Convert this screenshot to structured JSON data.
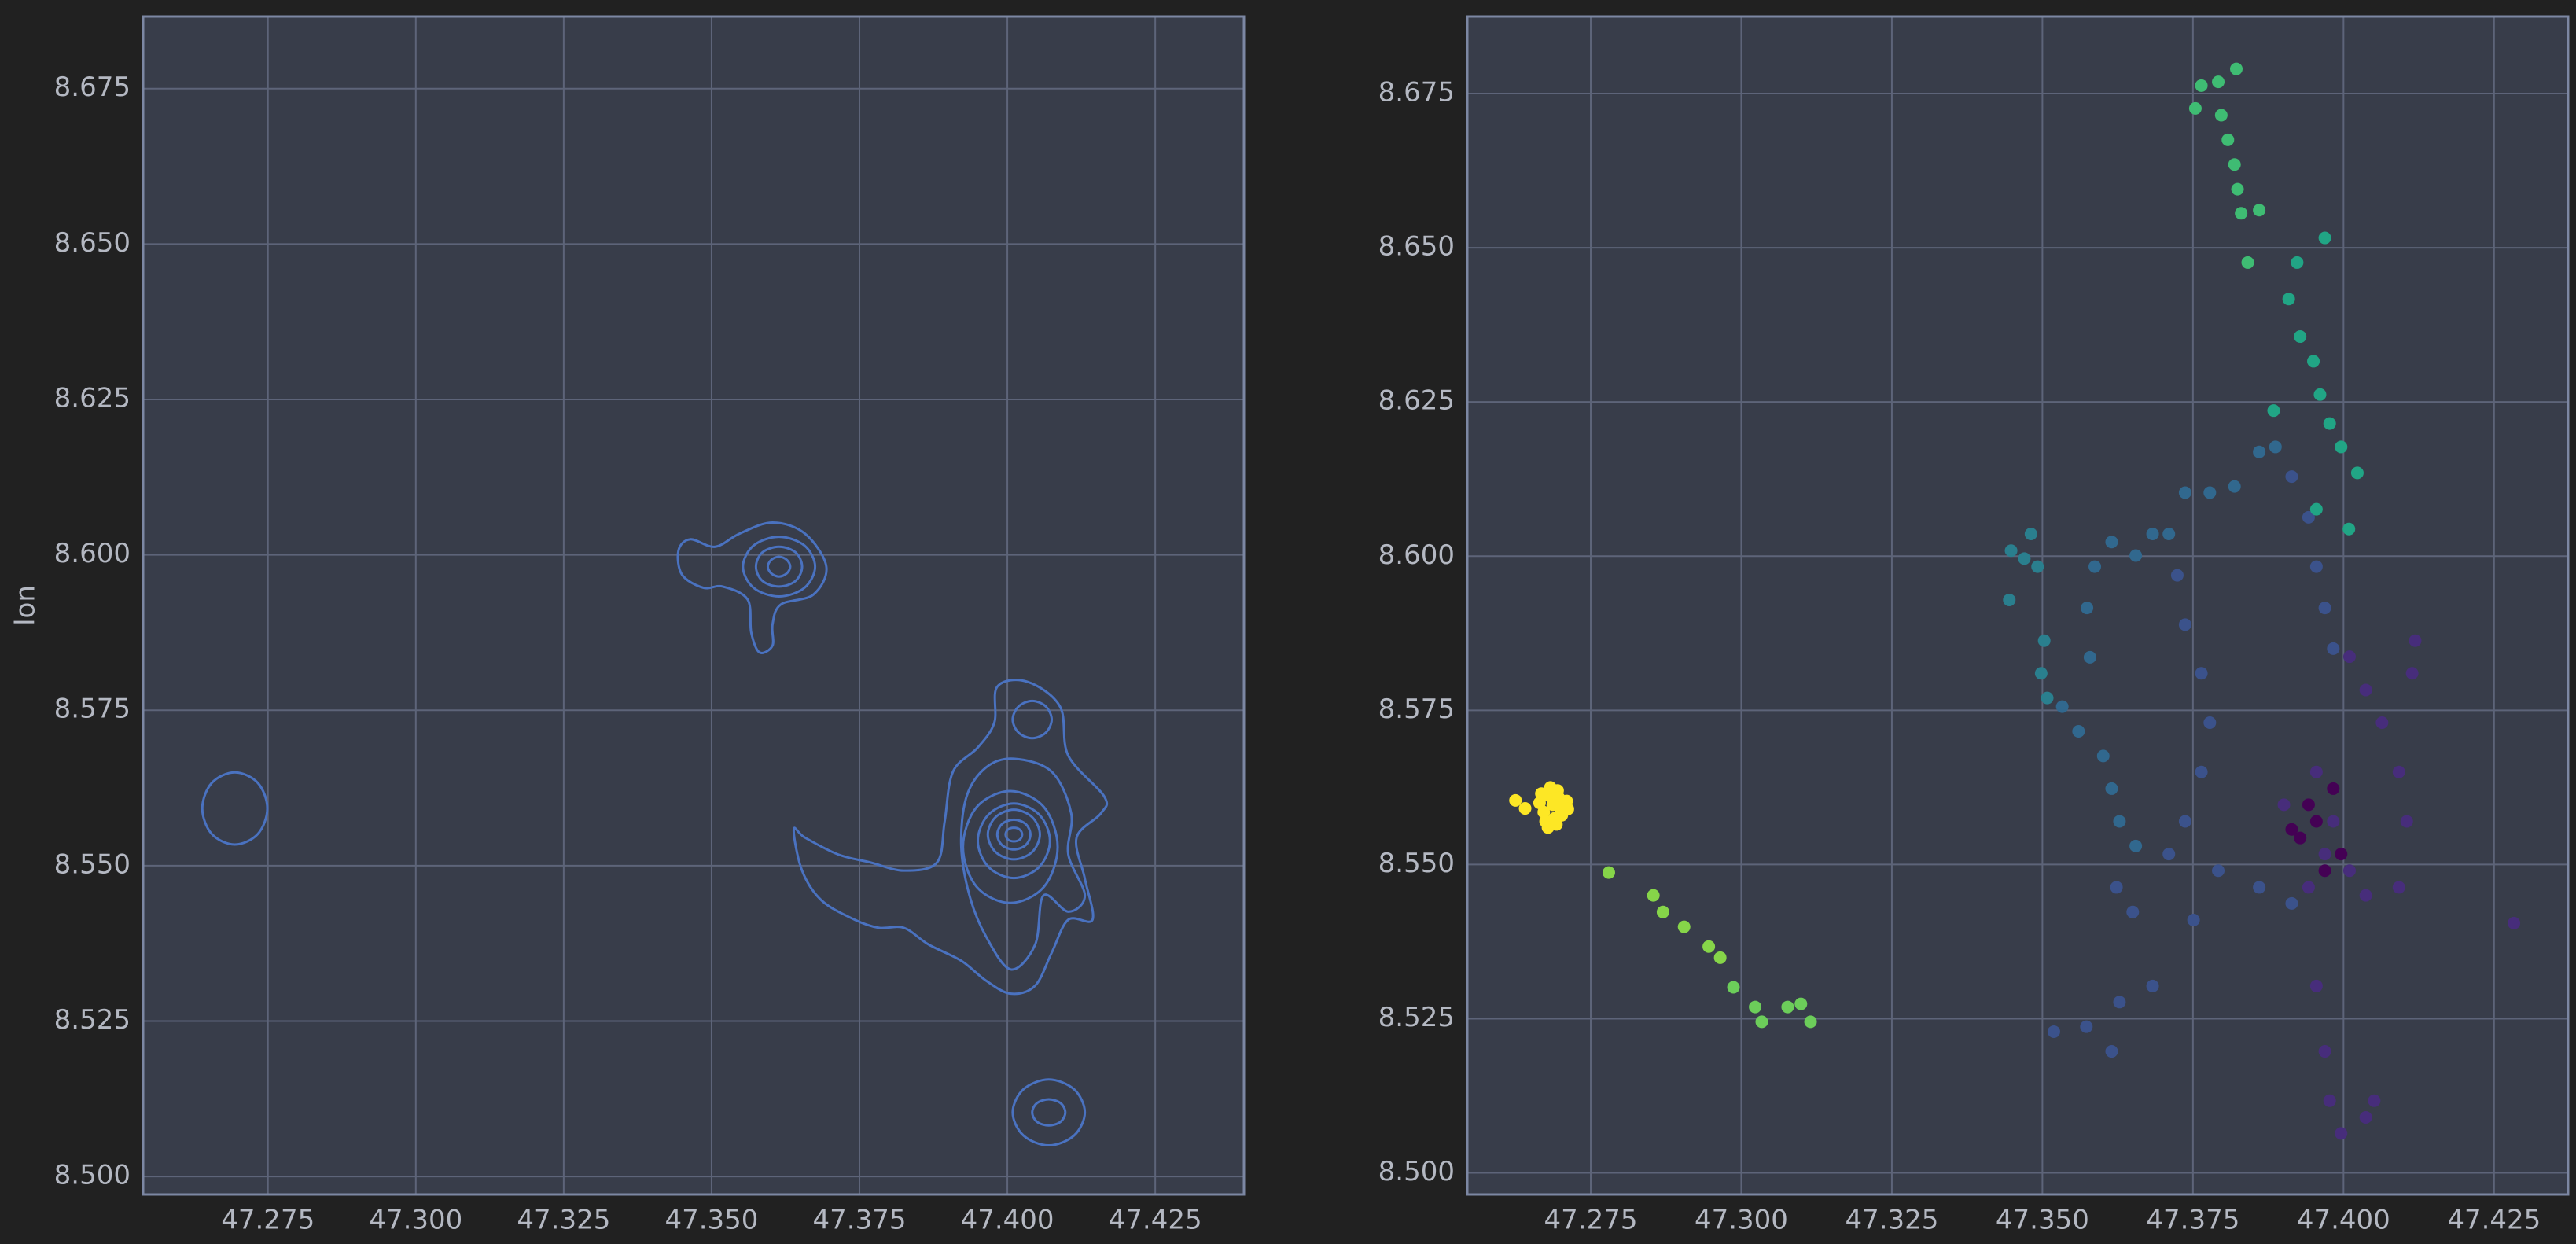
{
  "chart_data": [
    {
      "type": "contour",
      "ylabel": "lon",
      "color": "#4a72c0",
      "grid": true,
      "xlim": [
        47.2539,
        47.44
      ],
      "ylim": [
        8.4971,
        8.6866
      ],
      "xticks": [
        47.275,
        {
          "value": 47.3,
          "label": "47.300"
        },
        47.325,
        {
          "value": 47.35,
          "label": "47.350"
        },
        47.375,
        {
          "value": 47.4,
          "label": "47.400"
        },
        47.425
      ],
      "yticks": [
        {
          "value": 8.5,
          "label": "8.500"
        },
        8.525,
        {
          "value": 8.55,
          "label": "8.550"
        },
        8.575,
        {
          "value": 8.6,
          "label": "8.600"
        },
        8.625,
        {
          "value": 8.65,
          "label": "8.650"
        },
        8.675
      ],
      "contours": [
        {
          "x": [
            47.2749,
            47.2733,
            47.2694,
            47.2655,
            47.2639,
            47.2655,
            47.2694,
            47.2733
          ],
          "y": [
            8.5592,
            8.5633,
            8.565,
            8.5633,
            8.5592,
            8.5551,
            8.5534,
            8.5551
          ]
        },
        {
          "x": [
            47.3444,
            47.3464,
            47.3506,
            47.3547,
            47.3603,
            47.3658,
            47.3694,
            47.3672,
            47.3617,
            47.3603,
            47.3603,
            47.3581,
            47.3567,
            47.3561,
            47.3519,
            47.3486,
            47.345
          ],
          "y": [
            8.6007,
            8.6025,
            8.6013,
            8.6034,
            8.6052,
            8.6034,
            8.5981,
            8.5936,
            8.592,
            8.5888,
            8.5854,
            8.5843,
            8.5875,
            8.5928,
            8.5949,
            8.5947,
            8.5968
          ]
        },
        {
          "x": [
            47.3675,
            47.3657,
            47.3614,
            47.3571,
            47.3553,
            47.3571,
            47.3614,
            47.3657
          ],
          "y": [
            8.5981,
            8.6015,
            8.6029,
            8.6015,
            8.5981,
            8.5947,
            8.5933,
            8.5947
          ]
        },
        {
          "x": [
            47.3653,
            47.3642,
            47.3614,
            47.3586,
            47.3575,
            47.3586,
            47.3614,
            47.3642
          ],
          "y": [
            8.5981,
            8.6004,
            8.6013,
            8.6004,
            8.5981,
            8.5958,
            8.5949,
            8.5958
          ]
        },
        {
          "x": [
            47.3633,
            47.3627,
            47.3614,
            47.3601,
            47.3595,
            47.3601,
            47.3614,
            47.3627
          ],
          "y": [
            8.5981,
            8.5992,
            8.5997,
            8.5992,
            8.5981,
            8.597,
            8.5965,
            8.597
          ]
        },
        {
          "x": [
            47.4025,
            47.4021,
            47.4011,
            47.4001,
            47.3997,
            47.4001,
            47.4011,
            47.4021
          ],
          "y": [
            8.555,
            8.5558,
            8.5561,
            8.5558,
            8.555,
            8.5542,
            8.5539,
            8.5542
          ]
        },
        {
          "x": [
            47.4039,
            47.4031,
            47.4011,
            47.3991,
            47.3983,
            47.3991,
            47.4011,
            47.4031
          ],
          "y": [
            8.555,
            8.5567,
            8.5574,
            8.5567,
            8.555,
            8.5533,
            8.5526,
            8.5533
          ]
        },
        {
          "x": [
            47.4055,
            47.4042,
            47.4011,
            47.398,
            47.3967,
            47.398,
            47.4011,
            47.4042
          ],
          "y": [
            8.555,
            8.5578,
            8.559,
            8.5578,
            8.555,
            8.5522,
            8.551,
            8.5522
          ]
        },
        {
          "x": [
            47.4072,
            47.4054,
            47.4011,
            47.3968,
            47.395,
            47.3968,
            47.4011,
            47.4054
          ],
          "y": [
            8.554,
            8.5582,
            8.56,
            8.5582,
            8.554,
            8.5498,
            8.548,
            8.5498
          ]
        },
        {
          "x": [
            47.4085,
            47.4062,
            47.4005,
            47.3948,
            47.3925,
            47.3948,
            47.4005,
            47.4062
          ],
          "y": [
            8.553,
            8.5594,
            8.562,
            8.5594,
            8.553,
            8.5466,
            8.544,
            8.5466
          ]
        },
        {
          "x": [
            47.4011,
            47.4075,
            47.4108,
            47.4103,
            47.4131,
            47.4103,
            47.4061,
            47.4047,
            47.4006,
            47.3964,
            47.3936,
            47.3922,
            47.3931,
            47.3964
          ],
          "y": [
            8.5672,
            8.5651,
            8.5584,
            8.5518,
            8.5452,
            8.5426,
            8.5452,
            8.5373,
            8.5333,
            8.5386,
            8.5452,
            8.5532,
            8.5611,
            8.5658
          ]
        },
        {
          "x": [
            47.3983,
            47.4033,
            47.4089,
            47.4103,
            47.4164,
            47.4158,
            47.4117,
            47.4131,
            47.4144,
            47.4103,
            47.4075,
            47.4047,
            47.4006,
            47.3964,
            47.3922,
            47.3867,
            47.3825,
            47.3783,
            47.3742,
            47.3686,
            47.3653,
            47.3639,
            47.3658,
            47.3714,
            47.3769,
            47.3825,
            47.3881,
            47.3894,
            47.3908,
            47.395,
            47.3978
          ],
          "y": [
            8.5788,
            8.5796,
            8.5756,
            8.5677,
            8.5611,
            8.5584,
            8.5545,
            8.5479,
            8.5413,
            8.5413,
            8.536,
            8.5307,
            8.5294,
            8.5315,
            8.5347,
            8.5373,
            8.54,
            8.54,
            8.5413,
            8.5444,
            8.5492,
            8.5558,
            8.5545,
            8.5518,
            8.5505,
            8.5492,
            8.5505,
            8.5571,
            8.5651,
            8.569,
            8.573
          ]
        },
        {
          "x": [
            47.4075,
            47.4065,
            47.4042,
            47.4019,
            47.4009,
            47.4019,
            47.4042,
            47.4065
          ],
          "y": [
            8.5735,
            8.5756,
            8.5765,
            8.5756,
            8.5735,
            8.5714,
            8.5705,
            8.5714
          ]
        },
        {
          "x": [
            47.4131,
            47.4113,
            47.407,
            47.4027,
            47.4009,
            47.4027,
            47.407,
            47.4113
          ],
          "y": [
            8.5103,
            8.514,
            8.5156,
            8.514,
            8.5103,
            8.5066,
            8.505,
            8.5066
          ]
        },
        {
          "x": [
            47.4098,
            47.409,
            47.407,
            47.405,
            47.4042,
            47.405,
            47.407,
            47.409
          ],
          "y": [
            8.5103,
            8.5118,
            8.5124,
            8.5118,
            8.5103,
            8.5088,
            8.5082,
            8.5088
          ]
        }
      ]
    },
    {
      "type": "scatter",
      "grid": true,
      "xlim": [
        47.2545,
        47.4373
      ],
      "ylim": [
        8.4965,
        8.6875
      ],
      "xticks": [
        47.275,
        {
          "value": 47.3,
          "label": "47.300"
        },
        47.325,
        {
          "value": 47.35,
          "label": "47.350"
        },
        47.375,
        {
          "value": 47.4,
          "label": "47.400"
        },
        47.425
      ],
      "yticks": [
        {
          "value": 8.5,
          "label": "8.500"
        },
        8.525,
        {
          "value": 8.55,
          "label": "8.550"
        },
        8.575,
        {
          "value": 8.6,
          "label": "8.600"
        },
        8.625,
        {
          "value": 8.65,
          "label": "8.650"
        },
        8.675
      ],
      "series": [
        {
          "color": "#440154",
          "x": [
            47.3928,
            47.3955,
            47.3983,
            47.3996,
            47.3942,
            47.3969,
            47.3914
          ],
          "y": [
            8.5543,
            8.557,
            8.5623,
            8.5517,
            8.5597,
            8.549,
            8.5557
          ]
        },
        {
          "color": "#472d7b",
          "x": [
            47.3901,
            47.3955,
            47.3983,
            47.401,
            47.4037,
            47.4092,
            47.4105,
            47.4092,
            47.4064,
            47.4037,
            47.401,
            47.3969,
            47.3942,
            47.3955,
            47.3969,
            47.3977,
            47.3996,
            47.4037,
            47.4051,
            47.4119,
            47.4114,
            47.4283
          ],
          "y": [
            8.5597,
            8.565,
            8.557,
            8.549,
            8.545,
            8.5463,
            8.557,
            8.565,
            8.573,
            8.5783,
            8.5837,
            8.5517,
            8.5463,
            8.5303,
            8.5197,
            8.5117,
            8.5064,
            8.509,
            8.5117,
            8.5863,
            8.581,
            8.5405
          ]
        },
        {
          "color": "#3b528b",
          "x": [
            47.3914,
            47.3942,
            47.3955,
            47.3969,
            47.3983,
            47.3724,
            47.3737,
            47.3764,
            47.3778,
            47.3764,
            47.3737,
            47.371,
            47.3792,
            47.386,
            47.3914,
            47.3751,
            47.365,
            47.3623,
            47.3683,
            47.3628,
            47.3573,
            47.3519,
            47.3615
          ],
          "y": [
            8.6129,
            8.6063,
            8.5983,
            8.5916,
            8.585,
            8.5969,
            8.5889,
            8.581,
            8.573,
            8.565,
            8.557,
            8.5517,
            8.549,
            8.5463,
            8.5437,
            8.541,
            8.5423,
            8.5463,
            8.5303,
            8.5277,
            8.5237,
            8.5229,
            8.5197
          ]
        },
        {
          "color": "#31688e",
          "x": [
            47.3533,
            47.356,
            47.3601,
            47.3615,
            47.3628,
            47.3655,
            47.3579,
            47.3574,
            47.3587,
            47.3615,
            47.3655,
            47.3683,
            47.371,
            47.3737,
            47.3778,
            47.3819,
            47.386,
            47.3887
          ],
          "y": [
            8.5756,
            8.5716,
            8.5676,
            8.5623,
            8.557,
            8.553,
            8.5836,
            8.5916,
            8.5983,
            8.6023,
            8.6001,
            8.6036,
            8.6036,
            8.6103,
            8.6103,
            8.6113,
            8.6169,
            8.6177
          ]
        },
        {
          "color": "#2a7f8e",
          "x": [
            47.3448,
            47.347,
            47.3492,
            47.3445,
            47.3503,
            47.3498,
            47.3508,
            47.3481
          ],
          "y": [
            8.6009,
            8.5996,
            8.5983,
            8.5929,
            8.5863,
            8.581,
            8.577,
            8.6036
          ]
        },
        {
          "color": "#21a585",
          "x": [
            47.3969,
            47.3923,
            47.3909,
            47.3928,
            47.395,
            47.3961,
            47.3977,
            47.3996,
            47.4023,
            47.4009,
            47.3884,
            47.3955
          ],
          "y": [
            8.6516,
            8.6476,
            8.6417,
            8.6356,
            8.6316,
            8.6262,
            8.6215,
            8.6177,
            8.6135,
            8.6044,
            8.6236,
            8.6076
          ]
        },
        {
          "color": "#3fbc73",
          "x": [
            47.3754,
            47.3764,
            47.3792,
            47.3822,
            47.3797,
            47.3808,
            47.3819,
            47.3824,
            47.383,
            47.386,
            47.3841
          ],
          "y": [
            8.6726,
            8.6763,
            8.6769,
            8.679,
            8.6715,
            8.6675,
            8.6635,
            8.6595,
            8.6556,
            8.6561,
            8.6476
          ]
        },
        {
          "color": "#6ccd5a",
          "x": [
            47.2987,
            47.3023,
            47.3034,
            47.3077,
            47.3099,
            47.3115
          ],
          "y": [
            8.5301,
            8.5269,
            8.5245,
            8.5269,
            8.5274,
            8.5245
          ]
        },
        {
          "color": "#86d549",
          "x": [
            47.278,
            47.2854,
            47.287,
            47.2905,
            47.2946,
            47.2965
          ],
          "y": [
            8.5487,
            8.545,
            8.5423,
            8.5399,
            8.5367,
            8.5349
          ]
        },
        {
          "color": "#fde725",
          "x": [
            47.2625,
            47.2641,
            47.2665,
            47.2672,
            47.268,
            47.2687,
            47.2695,
            47.2702,
            47.271,
            47.2675,
            47.269,
            47.27,
            47.2668,
            47.2683,
            47.2697,
            47.2712,
            47.2679,
            47.2693
          ],
          "y": [
            8.5604,
            8.5591,
            8.56,
            8.5585,
            8.5612,
            8.5597,
            8.562,
            8.558,
            8.5603,
            8.557,
            8.5575,
            8.559,
            8.5615,
            8.5625,
            8.5608,
            8.559,
            8.556,
            8.5565
          ]
        }
      ]
    }
  ]
}
